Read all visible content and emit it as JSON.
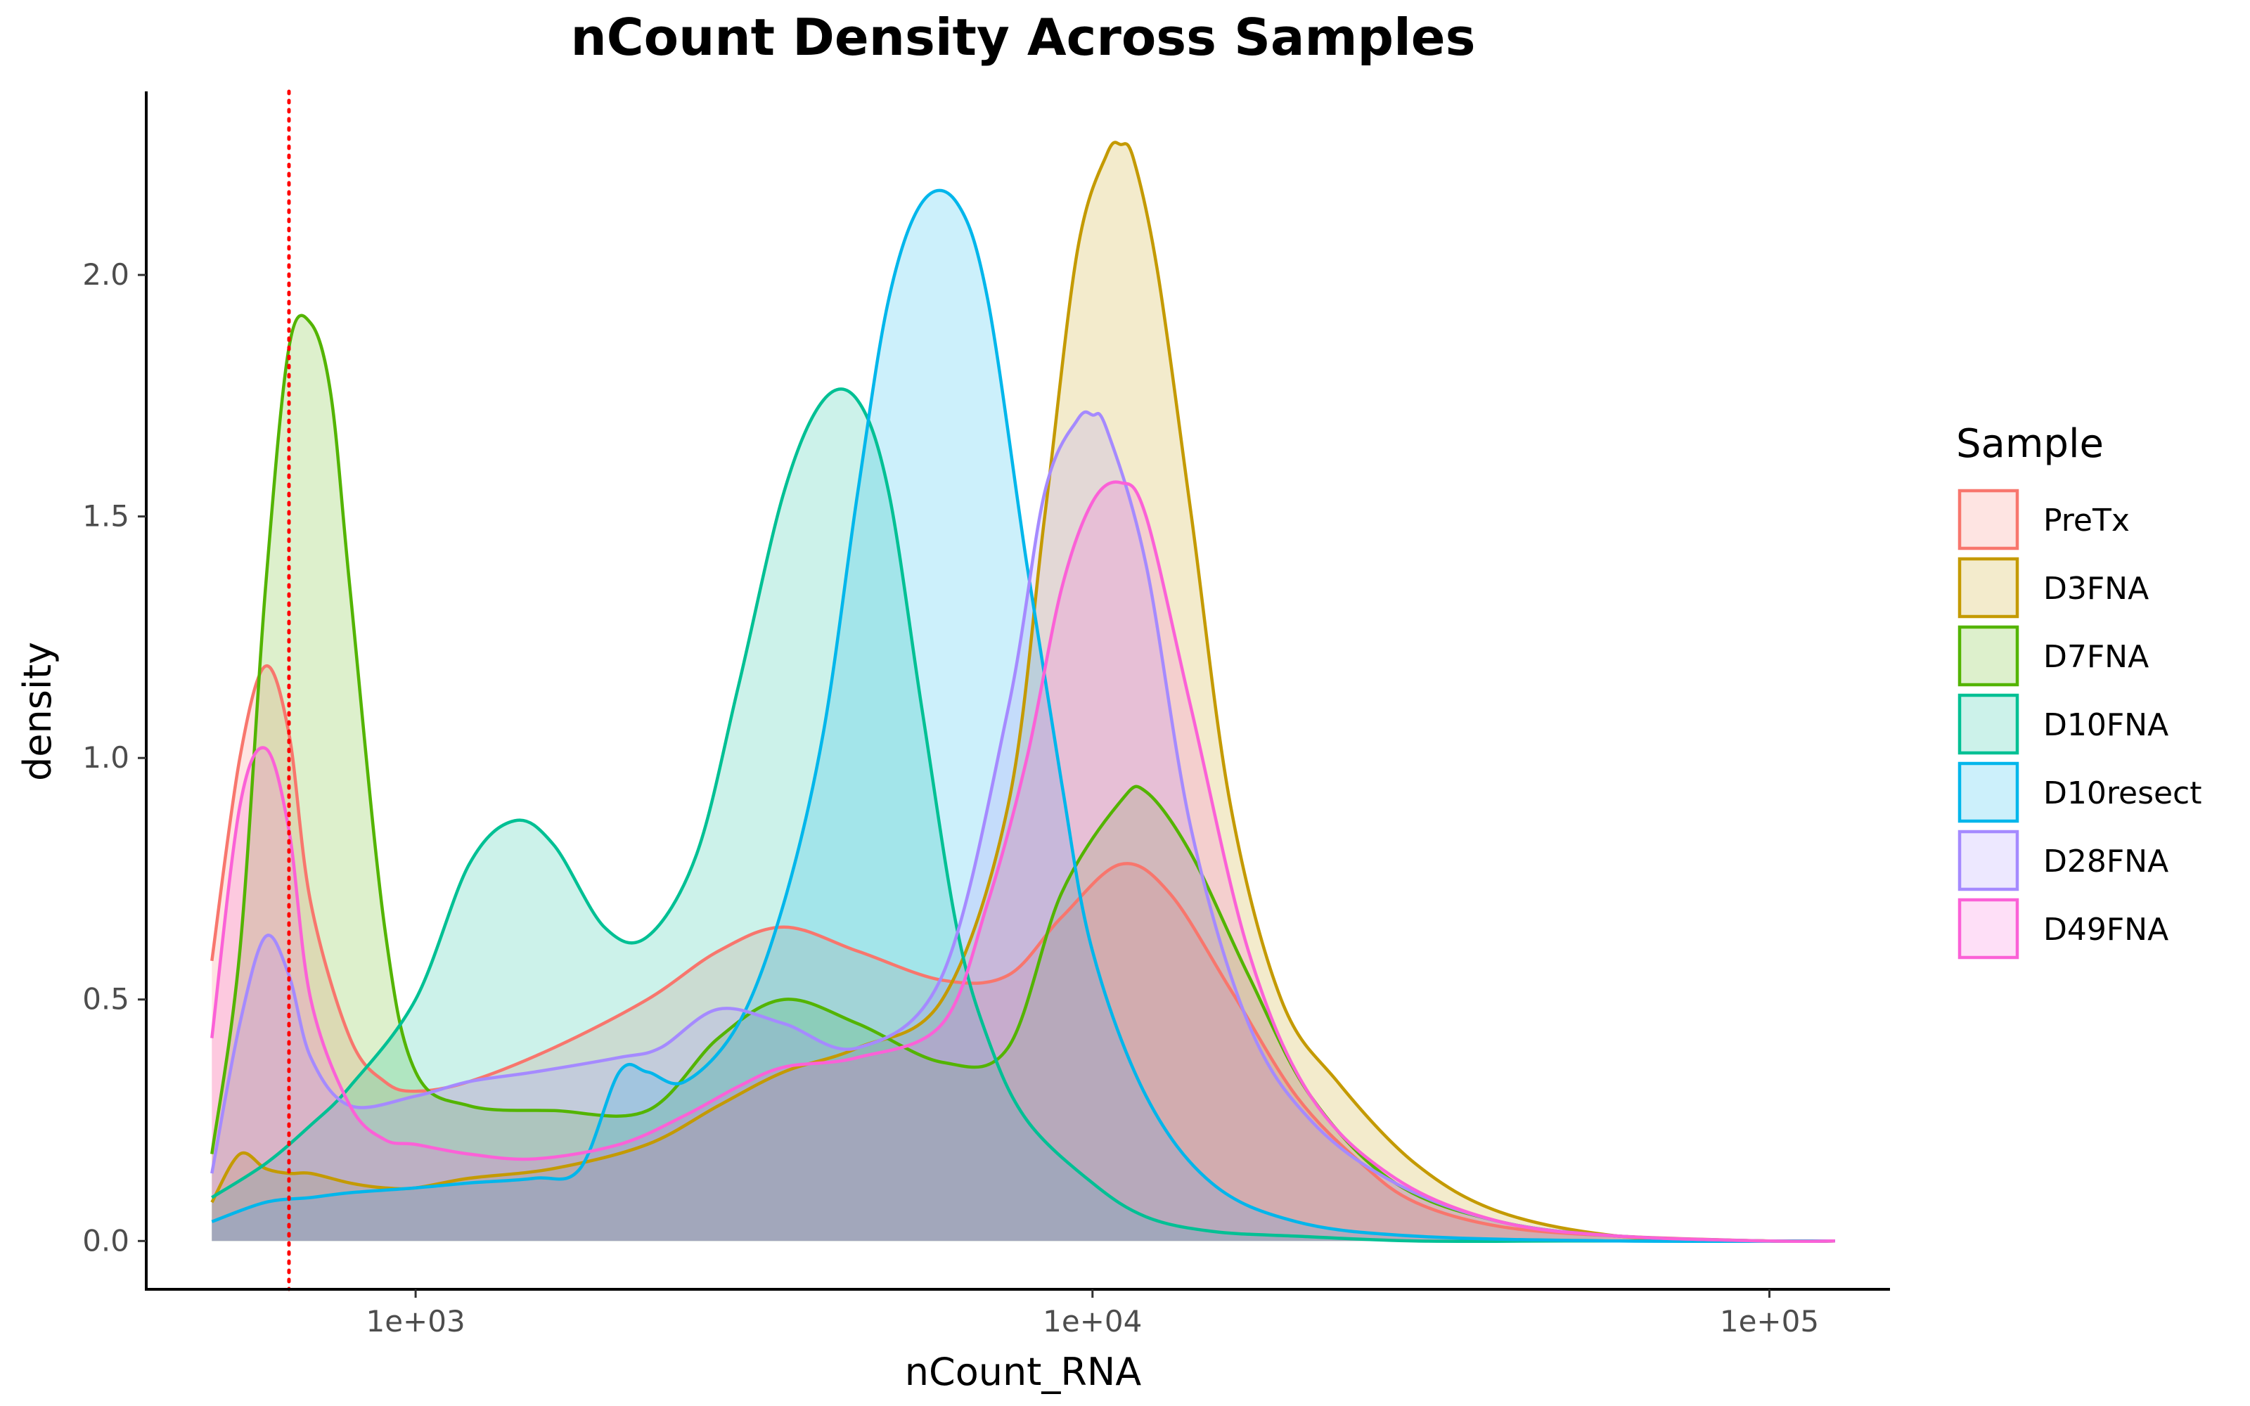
{
  "chart_data": {
    "type": "area",
    "title": "nCount Density Across Samples",
    "xlabel": "nCount_RNA",
    "ylabel": "density",
    "x_scale": "log10",
    "xlim": [
      400,
      150000
    ],
    "ylim": [
      -0.1,
      2.38
    ],
    "x_ticks": [
      {
        "value": 1000,
        "label": "1e+03"
      },
      {
        "value": 10000,
        "label": "1e+04"
      },
      {
        "value": 100000,
        "label": "1e+05"
      }
    ],
    "y_ticks": [
      {
        "value": 0.0,
        "label": "0.0"
      },
      {
        "value": 0.5,
        "label": "0.5"
      },
      {
        "value": 1.0,
        "label": "1.0"
      },
      {
        "value": 1.5,
        "label": "1.5"
      },
      {
        "value": 2.0,
        "label": "2.0"
      }
    ],
    "reference_line": {
      "x": 650,
      "color": "#ff0000",
      "style": "dotted"
    },
    "grid": false,
    "legend": {
      "title": "Sample",
      "position": "right"
    },
    "series": [
      {
        "name": "PreTx",
        "color": "#F8766D",
        "x": [
          500,
          550,
          600,
          650,
          700,
          800,
          900,
          1000,
          1200,
          1600,
          2200,
          2800,
          3500,
          4500,
          6000,
          7500,
          9000,
          11000,
          13000,
          16000,
          20000,
          25000,
          30000,
          40000,
          60000,
          100000,
          125000
        ],
        "y": [
          0.58,
          1.0,
          1.19,
          1.05,
          0.7,
          0.42,
          0.33,
          0.31,
          0.33,
          0.4,
          0.5,
          0.6,
          0.65,
          0.6,
          0.54,
          0.55,
          0.67,
          0.78,
          0.72,
          0.52,
          0.3,
          0.16,
          0.08,
          0.03,
          0.01,
          0.0,
          0.0
        ]
      },
      {
        "name": "D3FNA",
        "color": "#C49A00",
        "x": [
          500,
          550,
          600,
          650,
          700,
          800,
          900,
          1000,
          1200,
          1600,
          2200,
          2800,
          3500,
          4500,
          6000,
          7500,
          8500,
          9500,
          10500,
          11000,
          11500,
          12500,
          14000,
          16000,
          19000,
          23000,
          30000,
          40000,
          60000,
          100000,
          125000
        ],
        "y": [
          0.08,
          0.18,
          0.15,
          0.14,
          0.14,
          0.12,
          0.11,
          0.11,
          0.13,
          0.15,
          0.2,
          0.28,
          0.35,
          0.4,
          0.5,
          0.9,
          1.5,
          2.05,
          2.25,
          2.27,
          2.24,
          2.0,
          1.5,
          0.9,
          0.5,
          0.33,
          0.16,
          0.06,
          0.01,
          0.0,
          0.0
        ]
      },
      {
        "name": "D7FNA",
        "color": "#53B400",
        "x": [
          500,
          550,
          600,
          650,
          700,
          750,
          800,
          900,
          1000,
          1200,
          1600,
          2200,
          2800,
          3500,
          4500,
          6000,
          7500,
          9000,
          11000,
          12000,
          14000,
          17000,
          21000,
          28000,
          40000,
          60000,
          100000,
          125000
        ],
        "y": [
          0.18,
          0.6,
          1.35,
          1.85,
          1.9,
          1.75,
          1.35,
          0.65,
          0.35,
          0.28,
          0.27,
          0.27,
          0.42,
          0.5,
          0.45,
          0.37,
          0.4,
          0.72,
          0.91,
          0.93,
          0.8,
          0.55,
          0.3,
          0.12,
          0.04,
          0.01,
          0.0,
          0.0
        ]
      },
      {
        "name": "D10FNA",
        "color": "#00C094",
        "x": [
          500,
          600,
          700,
          800,
          1000,
          1200,
          1400,
          1600,
          1900,
          2200,
          2600,
          3000,
          3500,
          4000,
          4500,
          5000,
          5600,
          6300,
          7000,
          8000,
          10000,
          12000,
          15000,
          20000,
          30000,
          50000,
          100000,
          125000
        ],
        "y": [
          0.09,
          0.16,
          0.24,
          0.32,
          0.5,
          0.78,
          0.87,
          0.82,
          0.65,
          0.63,
          0.8,
          1.15,
          1.55,
          1.74,
          1.74,
          1.55,
          1.1,
          0.65,
          0.42,
          0.25,
          0.12,
          0.05,
          0.02,
          0.01,
          0.0,
          0.0,
          0.0,
          0.0
        ]
      },
      {
        "name": "D10resect",
        "color": "#00B6EB",
        "x": [
          500,
          600,
          700,
          800,
          1000,
          1200,
          1500,
          1750,
          2000,
          2200,
          2500,
          3000,
          3500,
          4000,
          4500,
          5000,
          5600,
          6300,
          7000,
          8000,
          9000,
          10000,
          12000,
          15000,
          20000,
          30000,
          60000,
          125000
        ],
        "y": [
          0.04,
          0.08,
          0.09,
          0.1,
          0.11,
          0.12,
          0.13,
          0.15,
          0.35,
          0.35,
          0.33,
          0.45,
          0.7,
          1.05,
          1.55,
          1.95,
          2.15,
          2.15,
          1.95,
          1.4,
          0.95,
          0.6,
          0.3,
          0.12,
          0.04,
          0.01,
          0.0,
          0.0
        ]
      },
      {
        "name": "D28FNA",
        "color": "#A58AFF",
        "x": [
          500,
          550,
          600,
          650,
          700,
          800,
          1000,
          1200,
          1500,
          2000,
          2300,
          2800,
          3500,
          4500,
          6000,
          7500,
          8500,
          9500,
          10000,
          10500,
          12000,
          14000,
          17000,
          21000,
          28000,
          40000,
          60000,
          100000,
          125000
        ],
        "y": [
          0.14,
          0.45,
          0.63,
          0.55,
          0.38,
          0.28,
          0.3,
          0.33,
          0.35,
          0.38,
          0.4,
          0.48,
          0.45,
          0.4,
          0.55,
          1.1,
          1.55,
          1.7,
          1.71,
          1.68,
          1.4,
          0.85,
          0.45,
          0.25,
          0.12,
          0.04,
          0.01,
          0.0,
          0.0
        ]
      },
      {
        "name": "D49FNA",
        "color": "#FB61D7",
        "x": [
          500,
          550,
          600,
          650,
          700,
          800,
          900,
          1000,
          1200,
          1500,
          2000,
          2500,
          3000,
          3500,
          4500,
          6000,
          7000,
          8000,
          9000,
          10000,
          11000,
          12000,
          14000,
          17000,
          21000,
          28000,
          40000,
          60000,
          100000,
          125000
        ],
        "y": [
          0.42,
          0.9,
          1.02,
          0.85,
          0.5,
          0.28,
          0.21,
          0.2,
          0.18,
          0.17,
          0.2,
          0.26,
          0.32,
          0.36,
          0.38,
          0.45,
          0.7,
          1.0,
          1.35,
          1.53,
          1.57,
          1.5,
          1.1,
          0.6,
          0.3,
          0.13,
          0.04,
          0.01,
          0.0,
          0.0
        ]
      }
    ]
  }
}
